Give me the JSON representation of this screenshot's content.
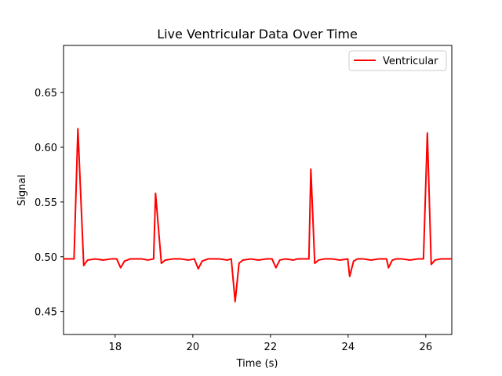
{
  "chart_data": {
    "type": "line",
    "title": "Live Ventricular Data Over Time",
    "xlabel": "Time (s)",
    "ylabel": "Signal",
    "xlim": [
      16.67,
      26.67
    ],
    "ylim": [
      0.429,
      0.693
    ],
    "xticks": [
      18,
      20,
      22,
      24,
      26
    ],
    "yticks": [
      0.45,
      0.5,
      0.55,
      0.6,
      0.65
    ],
    "xtick_labels": [
      "18",
      "20",
      "22",
      "24",
      "26"
    ],
    "ytick_labels": [
      "0.45",
      "0.50",
      "0.55",
      "0.60",
      "0.65"
    ],
    "grid": false,
    "legend_position": "top-right",
    "series": [
      {
        "name": "Ventricular",
        "color": "#ff0000",
        "x": [
          16.67,
          16.94,
          17.04,
          17.19,
          17.29,
          17.49,
          17.69,
          17.89,
          18.04,
          18.14,
          18.24,
          18.39,
          18.69,
          18.84,
          18.99,
          19.04,
          19.19,
          19.29,
          19.49,
          19.69,
          19.89,
          20.04,
          20.14,
          20.24,
          20.39,
          20.69,
          20.89,
          20.99,
          21.09,
          21.19,
          21.29,
          21.49,
          21.69,
          21.89,
          22.04,
          22.14,
          22.24,
          22.39,
          22.59,
          22.69,
          22.89,
          22.99,
          23.04,
          23.14,
          23.24,
          23.39,
          23.59,
          23.79,
          23.99,
          24.04,
          24.14,
          24.24,
          24.39,
          24.59,
          24.79,
          24.99,
          25.04,
          25.14,
          25.24,
          25.39,
          25.59,
          25.79,
          25.94,
          26.04,
          26.14,
          26.24,
          26.39,
          26.67
        ],
        "y": [
          0.498,
          0.498,
          0.617,
          0.492,
          0.497,
          0.498,
          0.497,
          0.498,
          0.498,
          0.49,
          0.496,
          0.498,
          0.498,
          0.497,
          0.498,
          0.558,
          0.494,
          0.497,
          0.498,
          0.498,
          0.497,
          0.498,
          0.489,
          0.496,
          0.498,
          0.498,
          0.497,
          0.498,
          0.459,
          0.494,
          0.497,
          0.498,
          0.497,
          0.498,
          0.498,
          0.49,
          0.497,
          0.498,
          0.497,
          0.498,
          0.498,
          0.498,
          0.58,
          0.494,
          0.497,
          0.498,
          0.498,
          0.497,
          0.498,
          0.482,
          0.496,
          0.498,
          0.498,
          0.497,
          0.498,
          0.498,
          0.49,
          0.497,
          0.498,
          0.498,
          0.497,
          0.498,
          0.498,
          0.613,
          0.493,
          0.497,
          0.498,
          0.498
        ]
      }
    ]
  }
}
